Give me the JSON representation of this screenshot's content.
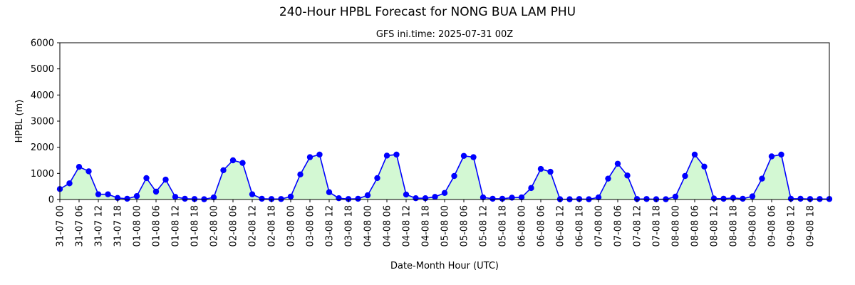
{
  "chart_data": {
    "type": "line",
    "title": "240-Hour HPBL Forecast for NONG BUA LAM PHU",
    "subtitle": "GFS ini.time: 2025-07-31 00Z",
    "xlabel": "Date-Month Hour (UTC)",
    "ylabel": "HPBL (m)",
    "ylim": [
      0,
      6000
    ],
    "yticks": [
      "0",
      "1000",
      "2000",
      "3000",
      "4000",
      "5000",
      "6000"
    ],
    "xlim_hours": [
      0,
      240
    ],
    "xticks": [
      "31-07 00",
      "31-07 06",
      "31-07 12",
      "31-07 18",
      "01-08 00",
      "01-08 06",
      "01-08 12",
      "01-08 18",
      "02-08 00",
      "02-08 06",
      "02-08 12",
      "02-08 18",
      "03-08 00",
      "03-08 06",
      "03-08 12",
      "03-08 18",
      "04-08 00",
      "04-08 06",
      "04-08 12",
      "04-08 18",
      "05-08 00",
      "05-08 06",
      "05-08 12",
      "05-08 18",
      "06-08 00",
      "06-08 06",
      "06-08 12",
      "06-08 18",
      "07-08 00",
      "07-08 06",
      "07-08 12",
      "07-08 18",
      "08-08 00",
      "08-08 06",
      "08-08 12",
      "08-08 18",
      "09-08 00",
      "09-08 06",
      "09-08 12",
      "09-08 18"
    ],
    "x_hours": [
      0,
      3,
      6,
      9,
      12,
      15,
      18,
      21,
      24,
      27,
      30,
      33,
      36,
      39,
      42,
      45,
      48,
      51,
      54,
      57,
      60,
      63,
      66,
      69,
      72,
      75,
      78,
      81,
      84,
      87,
      90,
      93,
      96,
      99,
      102,
      105,
      108,
      111,
      114,
      117,
      120,
      123,
      126,
      129,
      132,
      135,
      138,
      141,
      144,
      147,
      150,
      153,
      156,
      159,
      162,
      165,
      168,
      171,
      174,
      177,
      180,
      183,
      186,
      189,
      192,
      195,
      198,
      201,
      204,
      207,
      210,
      213,
      216,
      219,
      222,
      225,
      228,
      231,
      234,
      237,
      240
    ],
    "values": [
      400,
      620,
      1250,
      1080,
      200,
      200,
      60,
      30,
      130,
      820,
      300,
      760,
      100,
      30,
      20,
      10,
      80,
      1120,
      1500,
      1400,
      200,
      30,
      20,
      20,
      110,
      960,
      1620,
      1720,
      280,
      50,
      20,
      30,
      160,
      820,
      1680,
      1720,
      190,
      50,
      50,
      100,
      250,
      900,
      1670,
      1620,
      80,
      30,
      30,
      70,
      80,
      440,
      1170,
      1060,
      10,
      10,
      20,
      10,
      80,
      800,
      1370,
      920,
      20,
      20,
      10,
      10,
      110,
      900,
      1720,
      1260,
      40,
      30,
      60,
      30,
      120,
      800,
      1650,
      1720,
      30,
      30,
      20,
      20,
      20
    ],
    "line_color": "#0000ff",
    "marker_color": "#0000ff",
    "fill_color": "#d3f8d3",
    "grid": false
  }
}
